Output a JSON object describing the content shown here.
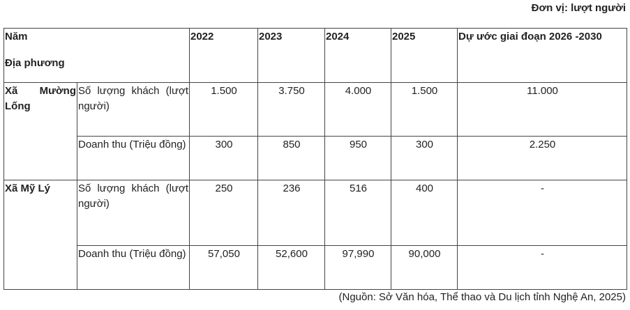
{
  "unit": "Đơn vị: lượt người",
  "table": {
    "header": {
      "year_label": "Năm",
      "region_label": "Địa phương",
      "columns": [
        "2022",
        "2023",
        "2024",
        "2025",
        "Dự ước giai đoạn 2026 -2030"
      ]
    },
    "rows": [
      {
        "region": "Xã Mường Lống",
        "metrics": [
          {
            "label": "Số lượng khách (lượt người)",
            "values": [
              "1.500",
              "3.750",
              "4.000",
              "1.500",
              "11.000"
            ]
          },
          {
            "label": "Doanh thu (Triệu đồng)",
            "values": [
              "300",
              "850",
              "950",
              "300",
              "2.250"
            ]
          }
        ]
      },
      {
        "region": "Xã Mỹ Lý",
        "metrics": [
          {
            "label": "Số lượng khách (lượt người)",
            "values": [
              "250",
              "236",
              "516",
              "400",
              "-"
            ]
          },
          {
            "label": "Doanh thu (Triệu đồng)",
            "values": [
              "57,050",
              "52,600",
              "97,990",
              "90,000",
              "-"
            ]
          }
        ]
      }
    ]
  },
  "source": "(Nguồn: Sở Văn hóa, Thể thao và Du lịch tỉnh Nghệ An, 2025)"
}
